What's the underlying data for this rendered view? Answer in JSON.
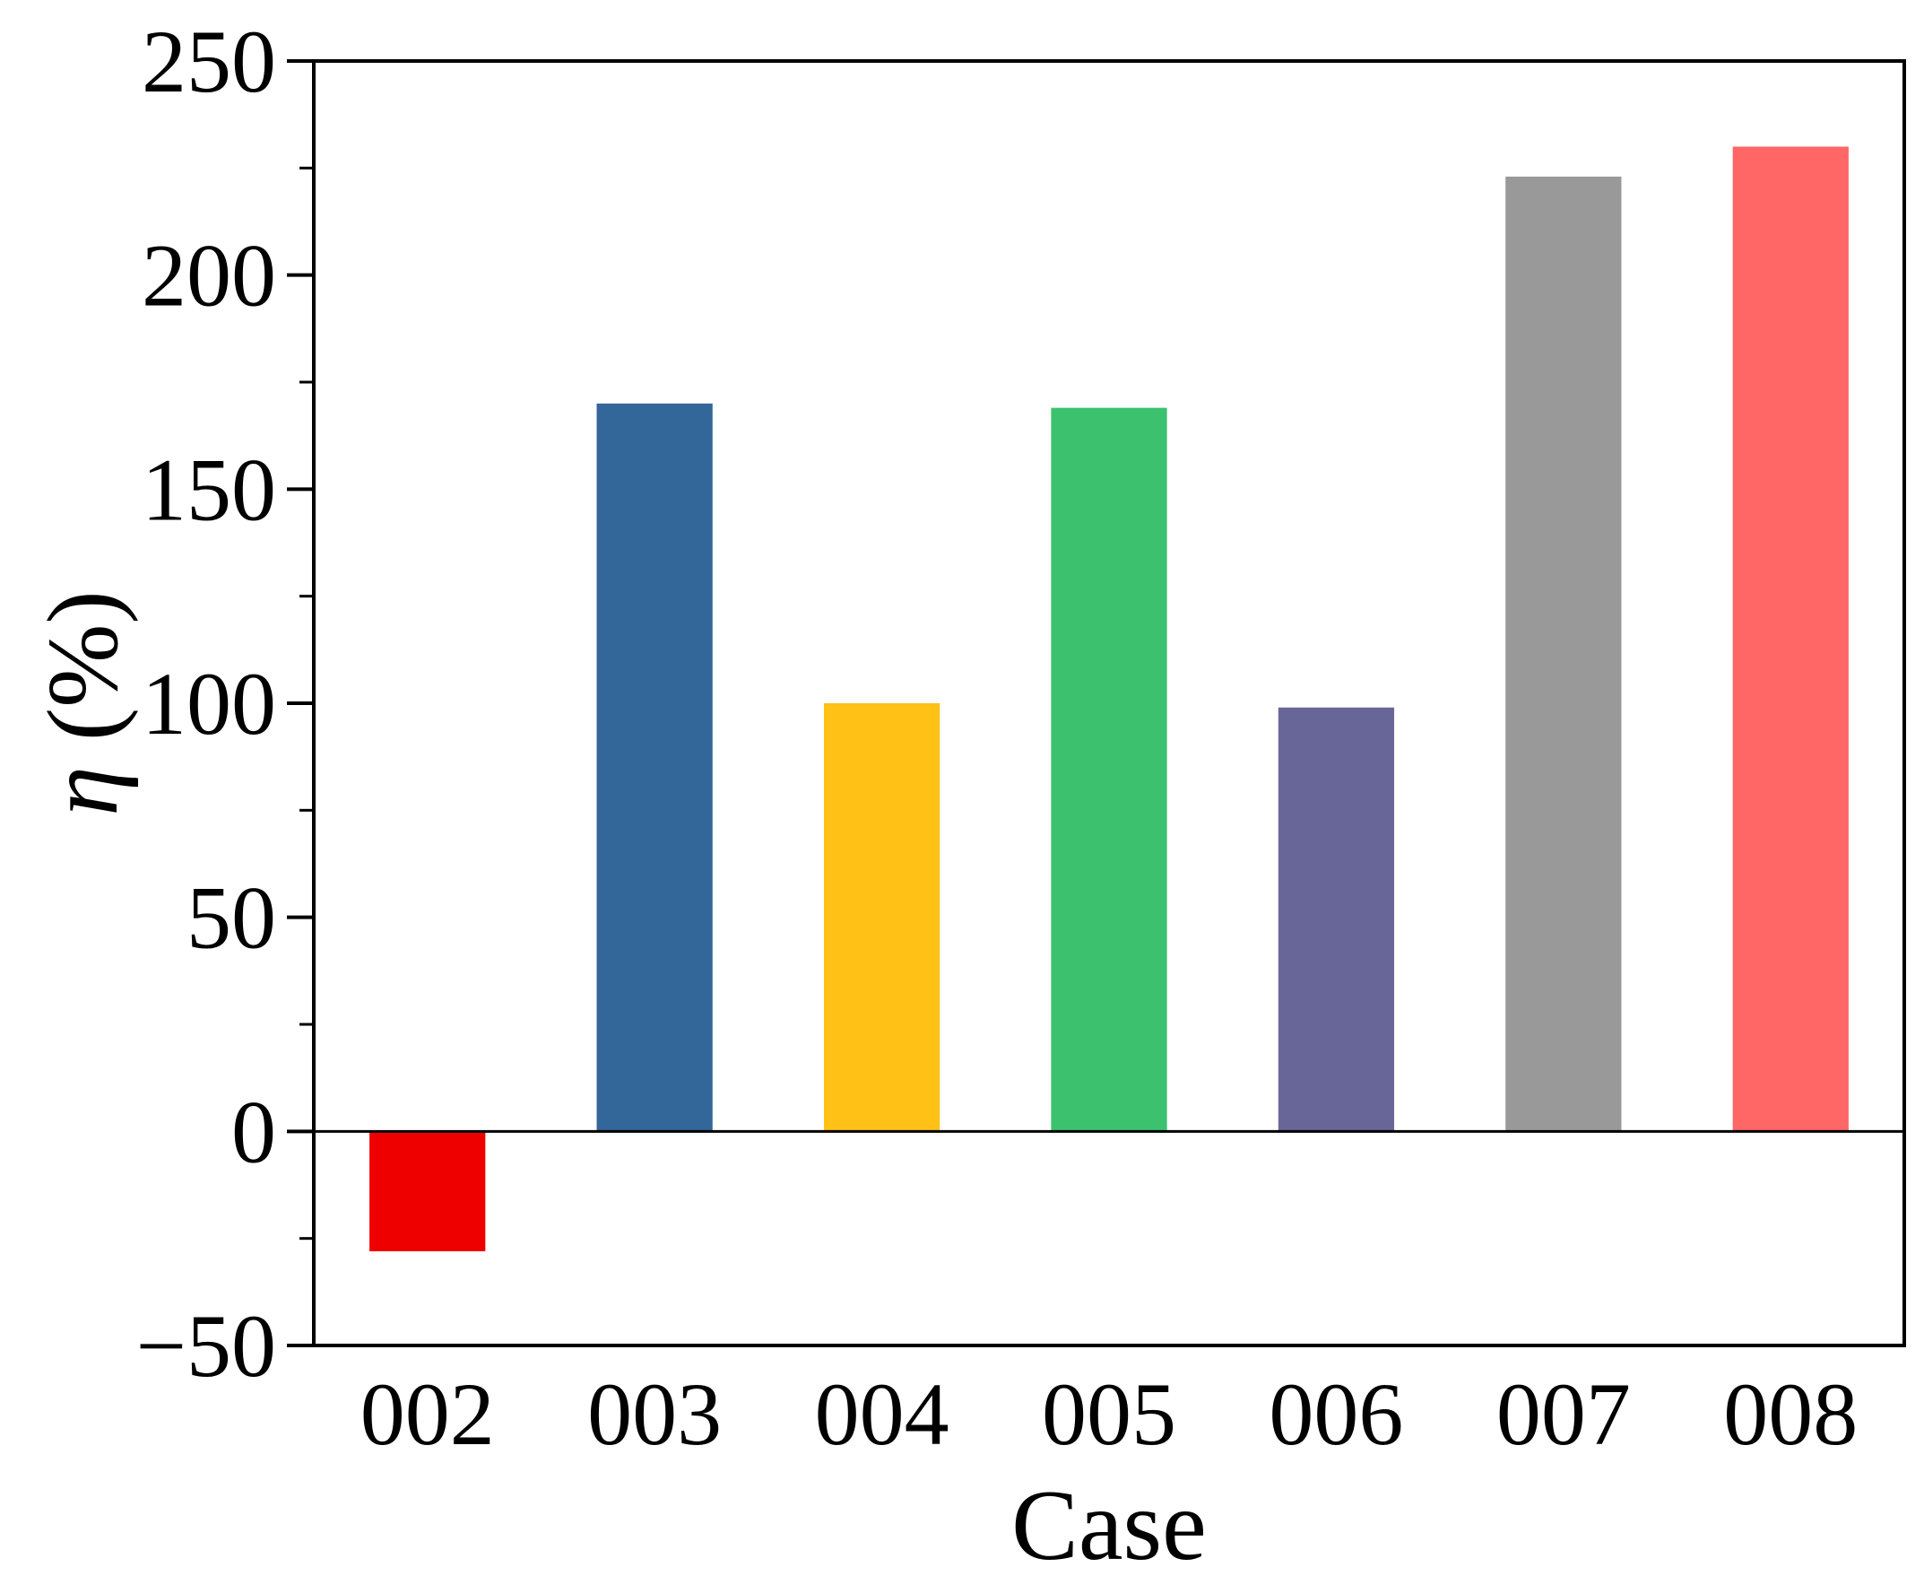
{
  "chart_data": {
    "type": "bar",
    "categories": [
      "002",
      "003",
      "004",
      "005",
      "006",
      "007",
      "008"
    ],
    "values": [
      -28,
      170,
      100,
      169,
      99,
      223,
      230
    ],
    "bar_colors": [
      "#ee0000",
      "#336699",
      "#ffc116",
      "#3cc26f",
      "#686698",
      "#999999",
      "#ff6666"
    ],
    "xlabel": "Case",
    "ylabel_symbol": "η",
    "ylabel_unit": " (%)",
    "ylim": [
      -50,
      250
    ],
    "yticks": [
      -50,
      0,
      50,
      100,
      150,
      200,
      250
    ],
    "ytick_labels": [
      "−50",
      "0",
      "50",
      "100",
      "150",
      "200",
      "250"
    ],
    "zero_line": true,
    "grid": false,
    "legend": "none"
  }
}
